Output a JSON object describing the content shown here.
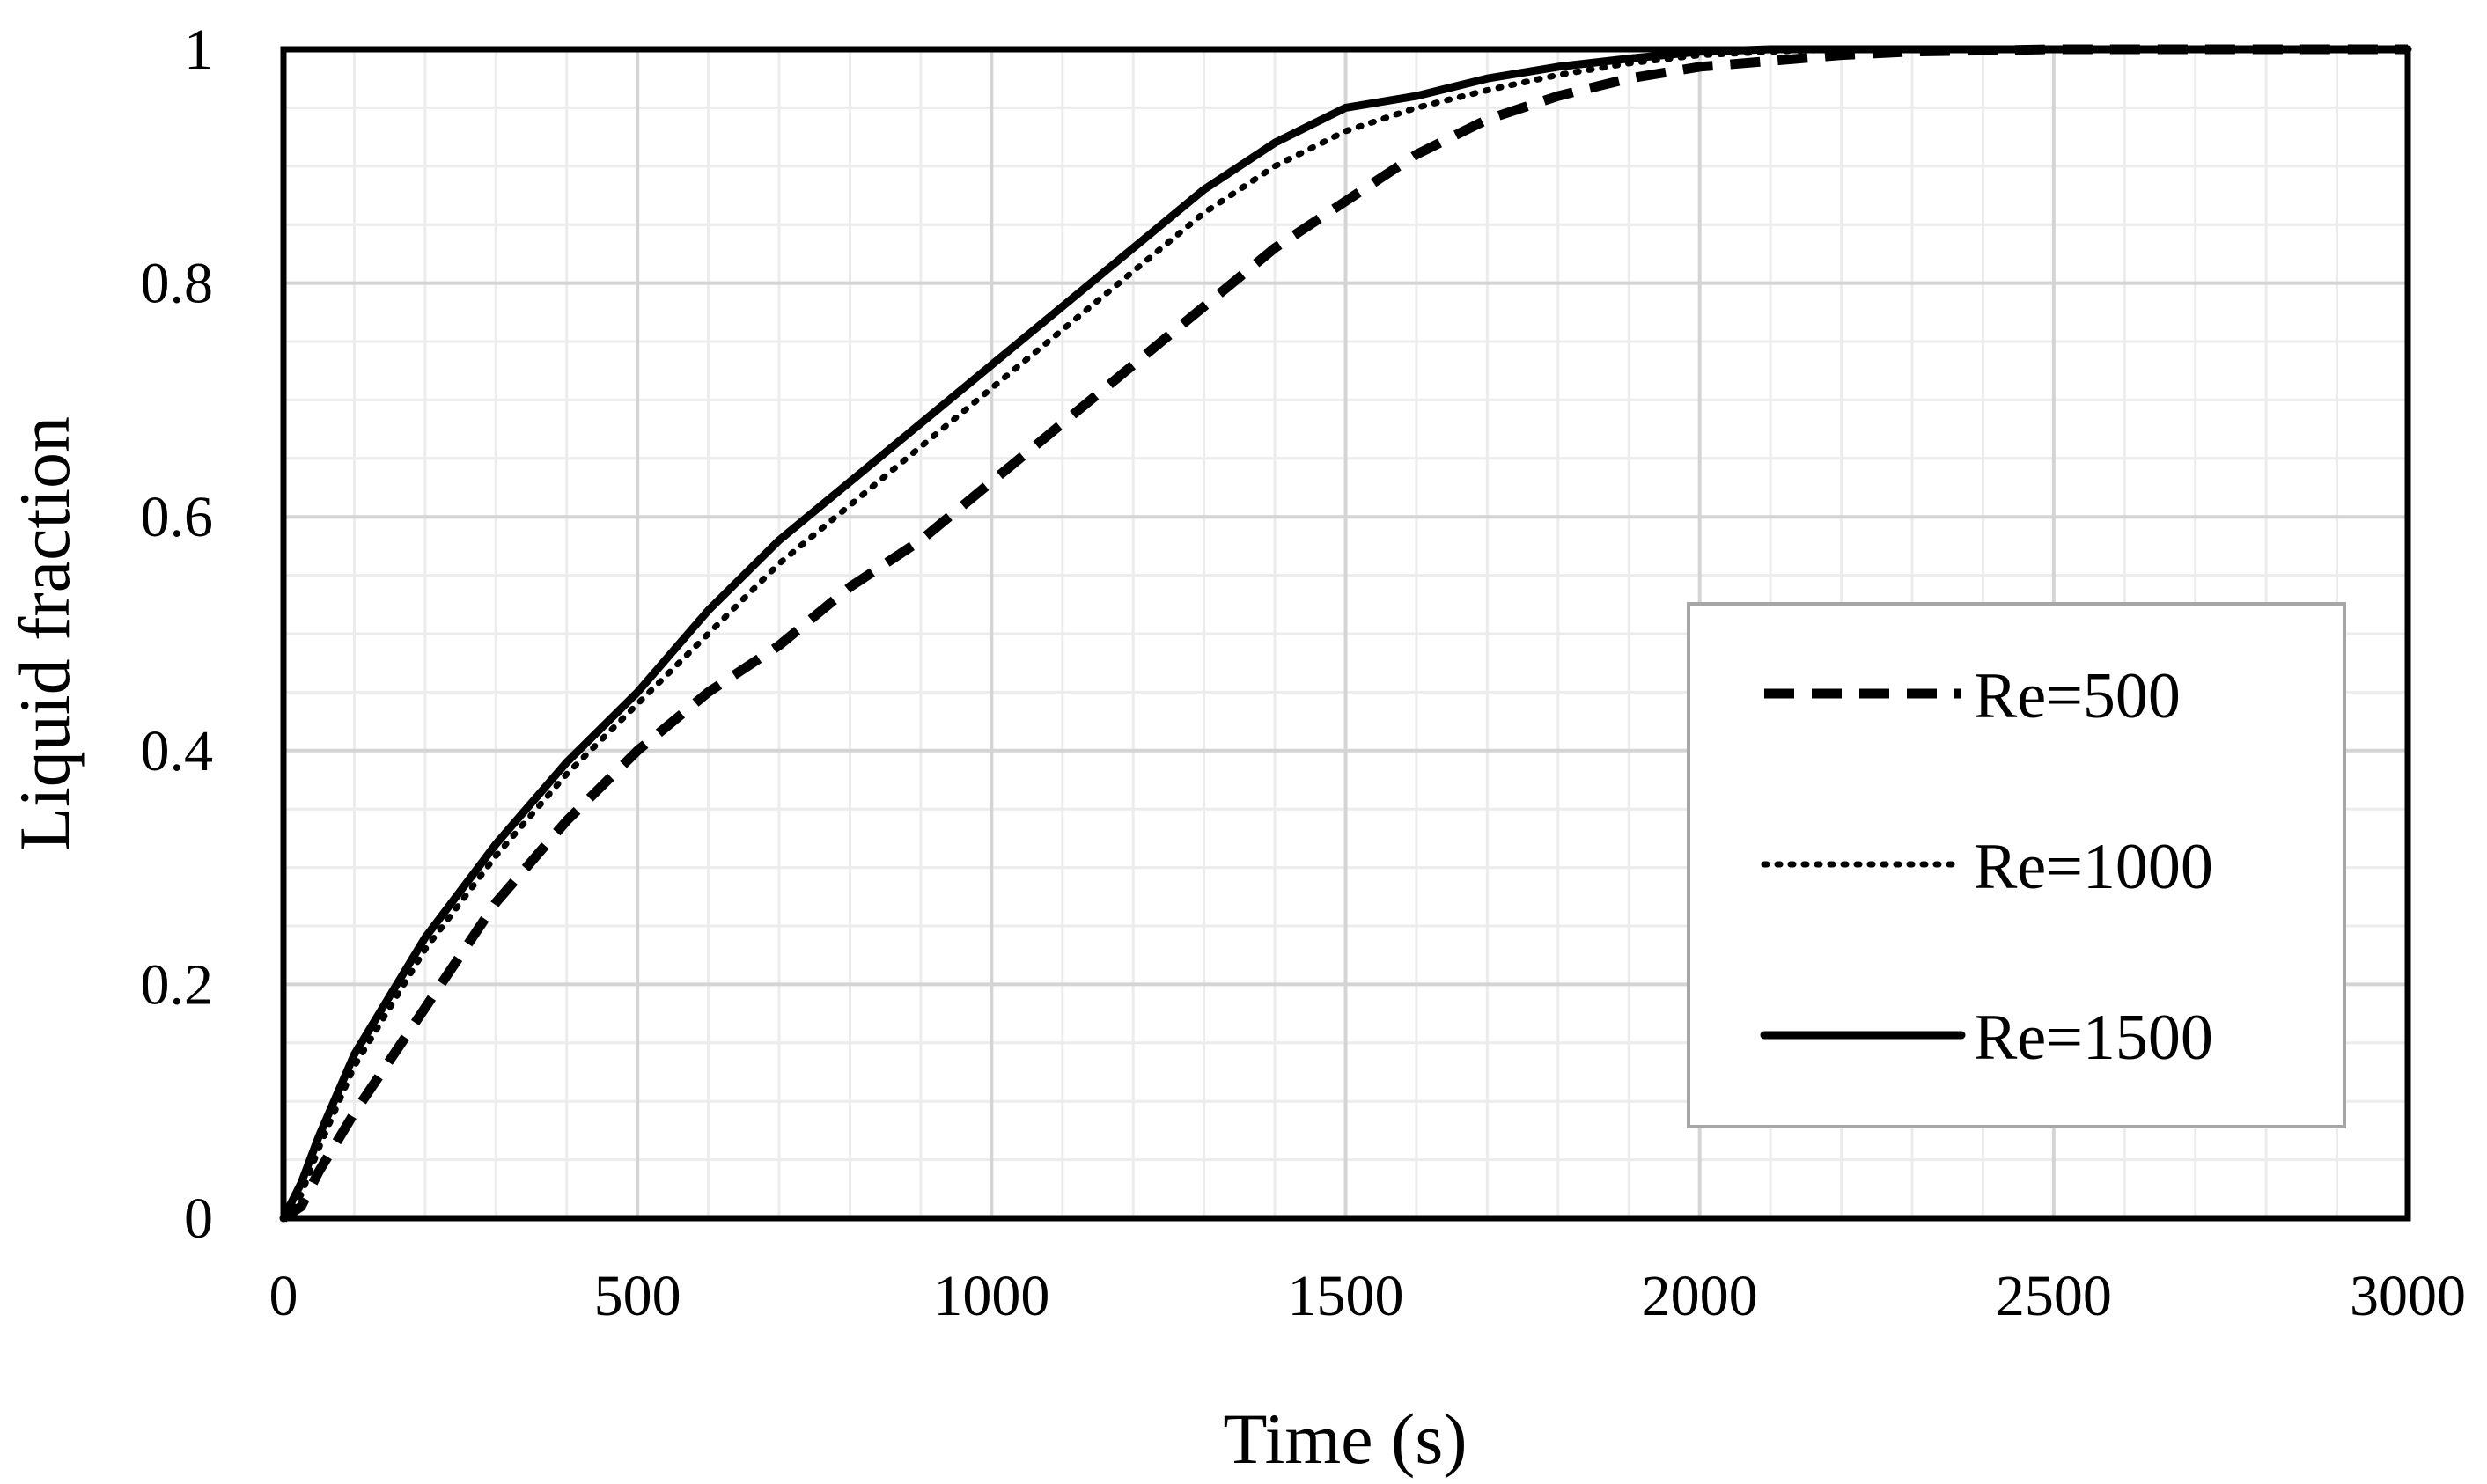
{
  "chart_data": {
    "type": "line",
    "title": "",
    "xlabel": "Time (s)",
    "ylabel": "Liquid fraction",
    "xlim": [
      0,
      3000
    ],
    "ylim": [
      0,
      1
    ],
    "x_ticks": [
      0,
      500,
      1000,
      1500,
      2000,
      2500,
      3000
    ],
    "x_tick_labels": [
      "0",
      "500",
      "1000",
      "1500",
      "2000",
      "2500",
      "3000"
    ],
    "y_ticks": [
      0,
      0.2,
      0.4,
      0.6,
      0.8,
      1
    ],
    "y_tick_labels": [
      "0",
      "0.2",
      "0.4",
      "0.6",
      "0.8",
      "1"
    ],
    "x_minor_step": 100,
    "y_minor_step": 0.05,
    "grid": true,
    "legend_position": "right",
    "series": [
      {
        "name": "Re=500",
        "style": "dashed",
        "x": [
          0,
          25,
          50,
          100,
          200,
          300,
          400,
          500,
          600,
          700,
          800,
          900,
          1000,
          1100,
          1200,
          1300,
          1400,
          1500,
          1600,
          1700,
          1800,
          1900,
          2000,
          2100,
          2200,
          2300,
          2500,
          2750,
          3000
        ],
        "y": [
          0,
          0.01,
          0.04,
          0.09,
          0.18,
          0.27,
          0.34,
          0.4,
          0.45,
          0.49,
          0.54,
          0.58,
          0.63,
          0.68,
          0.73,
          0.78,
          0.83,
          0.87,
          0.91,
          0.94,
          0.96,
          0.975,
          0.985,
          0.99,
          0.995,
          0.998,
          1.0,
          1.0,
          1.0
        ]
      },
      {
        "name": "Re=1000",
        "style": "dotted",
        "x": [
          0,
          25,
          50,
          100,
          200,
          300,
          400,
          500,
          600,
          700,
          800,
          900,
          1000,
          1100,
          1200,
          1300,
          1400,
          1500,
          1600,
          1700,
          1800,
          1900,
          2000,
          2100,
          2200,
          2500,
          2750,
          3000
        ],
        "y": [
          0,
          0.02,
          0.06,
          0.13,
          0.23,
          0.31,
          0.38,
          0.44,
          0.5,
          0.56,
          0.61,
          0.66,
          0.71,
          0.76,
          0.81,
          0.86,
          0.9,
          0.93,
          0.95,
          0.965,
          0.978,
          0.988,
          0.995,
          0.998,
          1.0,
          1.0,
          1.0,
          1.0
        ]
      },
      {
        "name": "Re=1500",
        "style": "solid",
        "x": [
          0,
          25,
          50,
          100,
          200,
          300,
          400,
          500,
          600,
          700,
          800,
          900,
          1000,
          1100,
          1200,
          1300,
          1400,
          1500,
          1600,
          1700,
          1800,
          1900,
          2000,
          2100,
          2200,
          2500,
          2750,
          3000
        ],
        "y": [
          0,
          0.03,
          0.07,
          0.14,
          0.24,
          0.32,
          0.39,
          0.45,
          0.52,
          0.58,
          0.63,
          0.68,
          0.73,
          0.78,
          0.83,
          0.88,
          0.92,
          0.95,
          0.96,
          0.975,
          0.985,
          0.992,
          0.998,
          1.0,
          1.0,
          1.0,
          1.0,
          1.0
        ]
      }
    ]
  }
}
